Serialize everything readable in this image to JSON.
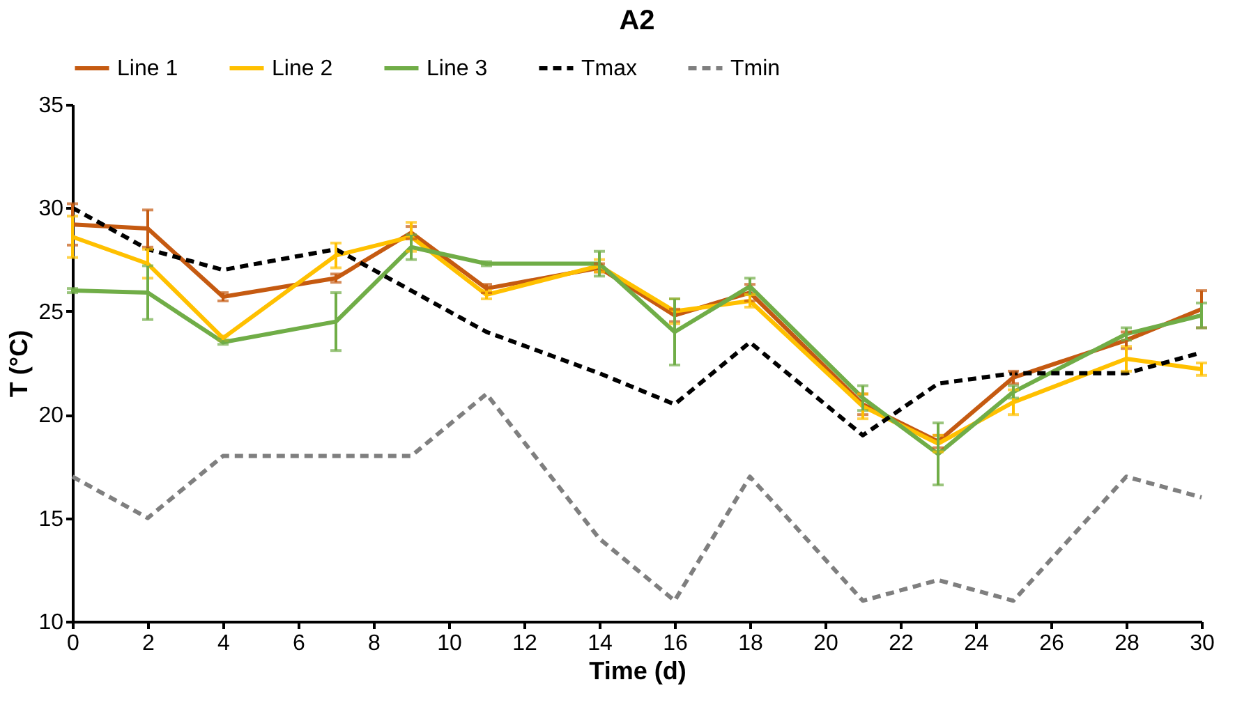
{
  "chart_data": {
    "type": "line",
    "title": "A2",
    "xlabel": "Time (d)",
    "ylabel": "T (°C)",
    "x": [
      0,
      2,
      4,
      7,
      9,
      11,
      14,
      16,
      18,
      21,
      23,
      25,
      28,
      30
    ],
    "xlim": [
      0,
      30
    ],
    "xticks": [
      0,
      2,
      4,
      6,
      8,
      10,
      12,
      14,
      16,
      18,
      20,
      22,
      24,
      26,
      28,
      30
    ],
    "ylim": [
      10,
      35
    ],
    "yticks": [
      10,
      15,
      20,
      25,
      30,
      35
    ],
    "grid": false,
    "legend": "top",
    "marker": "none",
    "series": [
      {
        "name": "Line 1",
        "color": "#c55a11",
        "line_style": "solid",
        "values": [
          29.2,
          29.0,
          25.7,
          26.6,
          28.8,
          26.1,
          27.1,
          24.8,
          25.9,
          20.5,
          18.7,
          21.8,
          23.6,
          25.1
        ],
        "errors": [
          1.0,
          0.9,
          0.2,
          0.2,
          0.3,
          0.2,
          0.2,
          0.3,
          0.4,
          0.5,
          0.3,
          0.3,
          0.4,
          0.9
        ]
      },
      {
        "name": "Line 2",
        "color": "#ffc000",
        "line_style": "solid",
        "values": [
          28.6,
          27.3,
          23.7,
          27.7,
          28.6,
          25.8,
          27.2,
          25.0,
          25.5,
          20.4,
          18.6,
          20.6,
          22.7,
          22.2
        ],
        "errors": [
          1.0,
          0.7,
          0.1,
          0.6,
          0.7,
          0.2,
          0.3,
          0.6,
          0.3,
          0.6,
          0.4,
          0.6,
          0.6,
          0.3
        ]
      },
      {
        "name": "Line 3",
        "color": "#70ad47",
        "line_style": "solid",
        "values": [
          26.0,
          25.9,
          23.5,
          24.5,
          28.1,
          27.3,
          27.3,
          24.0,
          26.2,
          20.8,
          18.1,
          21.1,
          23.9,
          24.8
        ],
        "errors": [
          0.1,
          1.3,
          0.1,
          1.4,
          0.6,
          0.1,
          0.6,
          1.6,
          0.4,
          0.6,
          1.5,
          0.3,
          0.3,
          0.6
        ]
      },
      {
        "name": "Tmax",
        "color": "#000000",
        "line_style": "dashed",
        "values": [
          30,
          28,
          27,
          28,
          26,
          24,
          22,
          20.5,
          23.5,
          19,
          21.5,
          22,
          22,
          23
        ]
      },
      {
        "name": "Tmin",
        "color": "#7f7f7f",
        "line_style": "dashed",
        "values": [
          17,
          15,
          18,
          18,
          18,
          21,
          14,
          11,
          17,
          11,
          12,
          11,
          17,
          16
        ]
      }
    ]
  }
}
